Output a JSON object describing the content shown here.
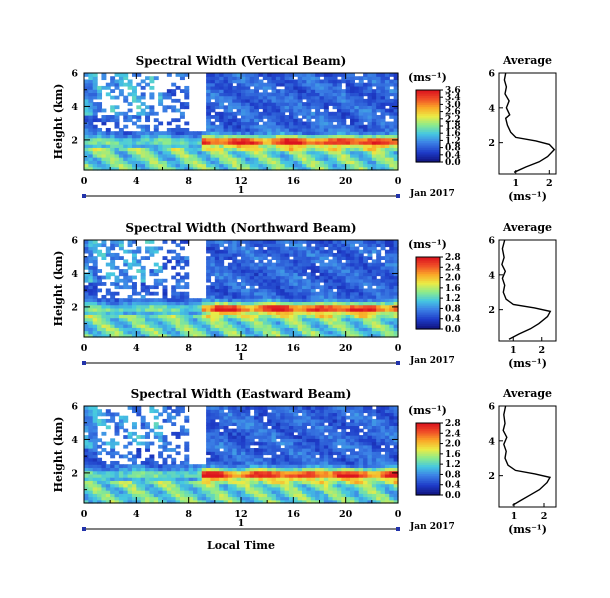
{
  "chart_data": [
    {
      "type": "heatmap",
      "title": "Spectral Width (Vertical Beam)",
      "ylabel": "Height (km)",
      "x_ticks": [
        "0",
        "4",
        "8",
        "12",
        "16",
        "20",
        "0"
      ],
      "y_ticks": [
        "6",
        "4",
        "2"
      ],
      "xlim": [
        0,
        24
      ],
      "ylim": [
        0.2,
        6
      ],
      "day_label": "1",
      "date_label": "Jan 2017",
      "colorbar": {
        "label": "(ms⁻¹)",
        "ticks": [
          "3.6",
          "3.4",
          "3.0",
          "2.6",
          "2.2",
          "1.8",
          "1.6",
          "1.2",
          "0.8",
          "0.4",
          "0.0"
        ],
        "range": [
          0,
          3.6
        ]
      },
      "average": {
        "title": "Average",
        "xlabel": "(ms⁻¹)",
        "x_ticks": [
          "1",
          "2"
        ],
        "y_ticks": [
          "6",
          "4",
          "2"
        ],
        "xlim": [
          0.5,
          2.2
        ],
        "ylim": [
          0.2,
          6
        ],
        "profile": [
          [
            0.3,
            0.95
          ],
          [
            0.6,
            1.3
          ],
          [
            0.9,
            1.7
          ],
          [
            1.2,
            1.95
          ],
          [
            1.6,
            2.15
          ],
          [
            1.9,
            2.0
          ],
          [
            2.1,
            1.6
          ],
          [
            2.3,
            1.0
          ],
          [
            2.6,
            0.85
          ],
          [
            3.0,
            0.75
          ],
          [
            3.4,
            0.7
          ],
          [
            3.6,
            0.82
          ],
          [
            4.0,
            0.72
          ],
          [
            4.4,
            0.8
          ],
          [
            4.8,
            0.68
          ],
          [
            5.2,
            0.72
          ],
          [
            5.6,
            0.66
          ],
          [
            6.0,
            0.7
          ]
        ]
      }
    },
    {
      "type": "heatmap",
      "title": "Spectral Width (Northward Beam)",
      "ylabel": "Height (km)",
      "x_ticks": [
        "0",
        "4",
        "8",
        "12",
        "16",
        "20",
        "0"
      ],
      "y_ticks": [
        "6",
        "4",
        "2"
      ],
      "xlim": [
        0,
        24
      ],
      "ylim": [
        0.2,
        6
      ],
      "day_label": "1",
      "date_label": "Jan 2017",
      "colorbar": {
        "label": "(ms⁻¹)",
        "ticks": [
          "2.8",
          "2.4",
          "2.0",
          "1.6",
          "1.2",
          "0.8",
          "0.4",
          "0.0"
        ],
        "range": [
          0,
          2.8
        ]
      },
      "average": {
        "title": "Average",
        "xlabel": "(ms⁻¹)",
        "x_ticks": [
          "1",
          "2"
        ],
        "y_ticks": [
          "6",
          "4",
          "2"
        ],
        "xlim": [
          0.5,
          2.5
        ],
        "ylim": [
          0.2,
          6
        ],
        "profile": [
          [
            0.3,
            0.85
          ],
          [
            0.6,
            1.2
          ],
          [
            0.9,
            1.6
          ],
          [
            1.2,
            1.9
          ],
          [
            1.6,
            2.2
          ],
          [
            1.9,
            2.3
          ],
          [
            2.1,
            1.75
          ],
          [
            2.3,
            1.0
          ],
          [
            2.6,
            0.75
          ],
          [
            3.0,
            0.65
          ],
          [
            3.4,
            0.7
          ],
          [
            3.8,
            0.62
          ],
          [
            4.2,
            0.72
          ],
          [
            4.6,
            0.6
          ],
          [
            5.0,
            0.68
          ],
          [
            5.5,
            0.62
          ],
          [
            6.0,
            0.7
          ]
        ]
      }
    },
    {
      "type": "heatmap",
      "title": "Spectral Width (Eastward Beam)",
      "ylabel": "Height (km)",
      "xlabel": "Local Time",
      "x_ticks": [
        "0",
        "4",
        "8",
        "12",
        "16",
        "20",
        "0"
      ],
      "y_ticks": [
        "6",
        "4",
        "2"
      ],
      "xlim": [
        0,
        24
      ],
      "ylim": [
        0.2,
        6
      ],
      "day_label": "1",
      "date_label": "Jan 2017",
      "colorbar": {
        "label": "(ms⁻¹)",
        "ticks": [
          "2.8",
          "2.4",
          "2.0",
          "1.6",
          "1.2",
          "0.8",
          "0.4",
          "0.0"
        ],
        "range": [
          0,
          2.8
        ]
      },
      "average": {
        "title": "Average",
        "xlabel": "(ms⁻¹)",
        "x_ticks": [
          "1",
          "2"
        ],
        "y_ticks": [
          "6",
          "4",
          "2"
        ],
        "xlim": [
          0.5,
          2.4
        ],
        "ylim": [
          0.2,
          6
        ],
        "profile": [
          [
            0.3,
            0.95
          ],
          [
            0.6,
            1.25
          ],
          [
            0.9,
            1.55
          ],
          [
            1.2,
            1.85
          ],
          [
            1.6,
            2.1
          ],
          [
            1.9,
            2.2
          ],
          [
            2.1,
            1.7
          ],
          [
            2.3,
            1.05
          ],
          [
            2.6,
            0.8
          ],
          [
            3.0,
            0.7
          ],
          [
            3.4,
            0.74
          ],
          [
            3.8,
            0.66
          ],
          [
            4.2,
            0.76
          ],
          [
            4.6,
            0.64
          ],
          [
            5.0,
            0.7
          ],
          [
            5.5,
            0.66
          ],
          [
            6.0,
            0.72
          ]
        ]
      }
    }
  ]
}
